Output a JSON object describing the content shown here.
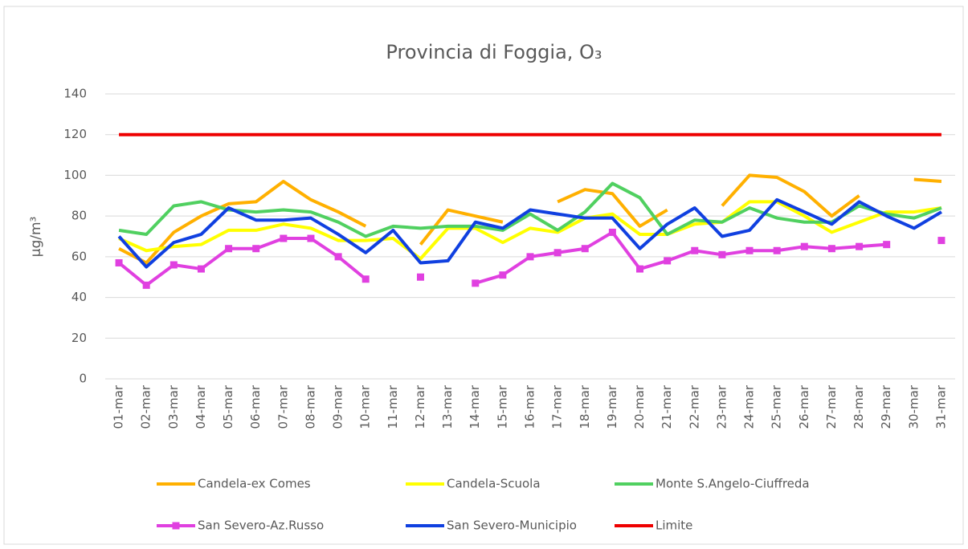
{
  "chart_data": {
    "type": "line",
    "title": "Provincia di Foggia, O₃",
    "y_label": "µg/m³",
    "categories": [
      "01-mar",
      "02-mar",
      "03-mar",
      "04-mar",
      "05-mar",
      "06-mar",
      "07-mar",
      "08-mar",
      "09-mar",
      "10-mar",
      "11-mar",
      "12-mar",
      "13-mar",
      "14-mar",
      "15-mar",
      "16-mar",
      "17-mar",
      "18-mar",
      "19-mar",
      "20-mar",
      "21-mar",
      "22-mar",
      "23-mar",
      "24-mar",
      "25-mar",
      "26-mar",
      "27-mar",
      "28-mar",
      "29-mar",
      "30-mar",
      "31-mar"
    ],
    "series": [
      {
        "name": "Candela-ex Comes",
        "color": "#ffb000",
        "values": [
          64,
          57,
          72,
          80,
          86,
          87,
          97,
          88,
          82,
          75,
          null,
          66,
          83,
          80,
          77,
          null,
          87,
          93,
          91,
          75,
          83,
          null,
          85,
          100,
          99,
          92,
          80,
          90,
          null,
          98,
          97
        ]
      },
      {
        "name": "Candela-Scuola",
        "color": "#ffff00",
        "values": [
          69,
          63,
          65,
          66,
          73,
          73,
          76,
          74,
          68,
          68,
          69,
          59,
          74,
          74,
          67,
          74,
          72,
          79,
          81,
          71,
          71,
          76,
          77,
          87,
          87,
          80,
          72,
          77,
          82,
          82,
          84
        ]
      },
      {
        "name": "Monte S.Angelo-Ciuffreda",
        "color": "#50d060",
        "values": [
          73,
          71,
          85,
          87,
          83,
          82,
          83,
          82,
          77,
          70,
          75,
          74,
          75,
          75,
          73,
          81,
          73,
          82,
          96,
          89,
          71,
          78,
          77,
          84,
          79,
          77,
          77,
          85,
          81,
          79,
          84
        ]
      },
      {
        "name": "San Severo-Az.Russo",
        "color": "#e040e0",
        "marker": "square",
        "values": [
          57,
          46,
          56,
          54,
          64,
          64,
          69,
          69,
          60,
          49,
          null,
          50,
          null,
          47,
          51,
          60,
          62,
          64,
          72,
          54,
          58,
          63,
          61,
          63,
          63,
          65,
          64,
          65,
          66,
          null,
          68
        ]
      },
      {
        "name": "San Severo-Municipio",
        "color": "#1040e0",
        "values": [
          70,
          55,
          67,
          71,
          84,
          78,
          78,
          79,
          71,
          62,
          73,
          57,
          58,
          77,
          74,
          83,
          81,
          79,
          79,
          64,
          76,
          84,
          70,
          73,
          88,
          82,
          76,
          87,
          80,
          74,
          82
        ]
      },
      {
        "name": "Limite",
        "color": "#ee0000",
        "values": [
          120,
          120,
          120,
          120,
          120,
          120,
          120,
          120,
          120,
          120,
          120,
          120,
          120,
          120,
          120,
          120,
          120,
          120,
          120,
          120,
          120,
          120,
          120,
          120,
          120,
          120,
          120,
          120,
          120,
          120,
          120
        ]
      }
    ],
    "ylim": [
      0,
      140
    ],
    "yticks": [
      0,
      20,
      40,
      60,
      80,
      100,
      120,
      140
    ],
    "grid": true,
    "legend": "bottom"
  }
}
